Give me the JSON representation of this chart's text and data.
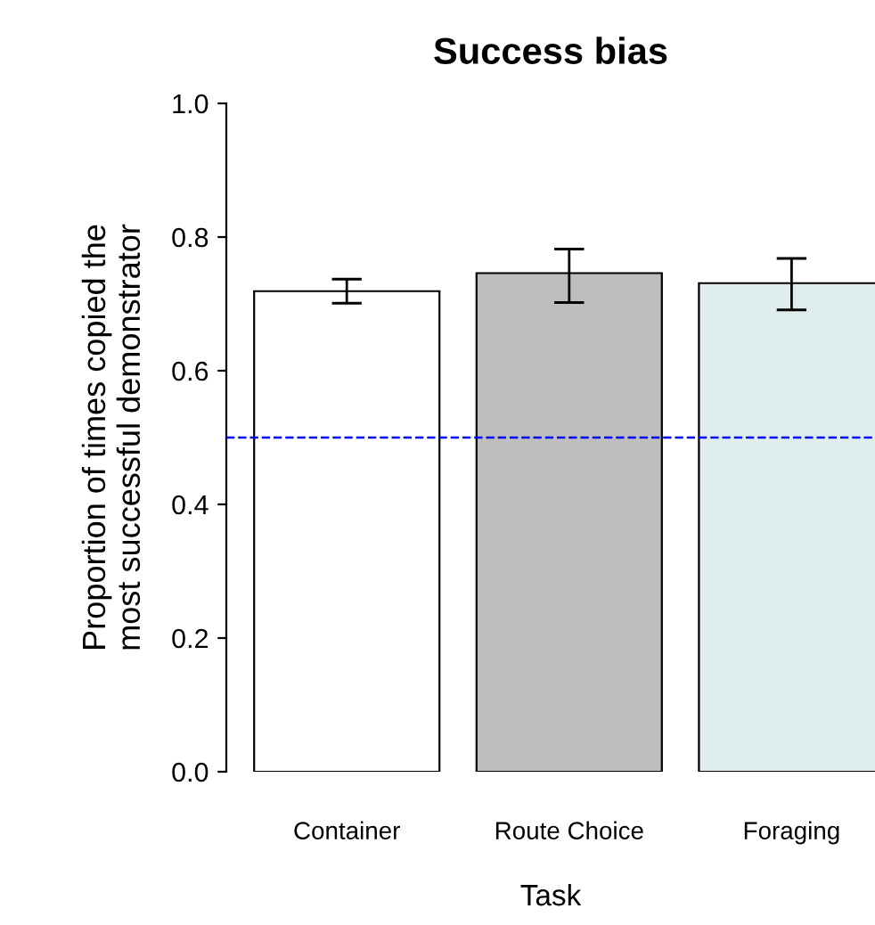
{
  "chart_data": {
    "type": "bar",
    "title": "Success bias",
    "xlabel": "Task",
    "ylabel": "Proportion of times copied the\nmost successful demonstrator",
    "categories": [
      "Container",
      "Route Choice",
      "Foraging"
    ],
    "values": [
      0.719,
      0.746,
      0.731
    ],
    "colors": [
      "#ffffff",
      "#bebebe",
      "#e0eded"
    ],
    "errors": [
      [
        0.701,
        0.737
      ],
      [
        0.702,
        0.782
      ],
      [
        0.691,
        0.768
      ]
    ],
    "ylim": [
      0,
      1
    ],
    "yticks": [
      {
        "value": 0,
        "label": "0.0"
      },
      0.2,
      0.4,
      0.6,
      0.8,
      {
        "value": 1,
        "label": "1.0"
      }
    ],
    "ref_lines": [
      {
        "axis": "y",
        "value": 0.5,
        "color": "#0000ff",
        "line_style": "dashed"
      }
    ],
    "grid": false,
    "legend": false
  }
}
